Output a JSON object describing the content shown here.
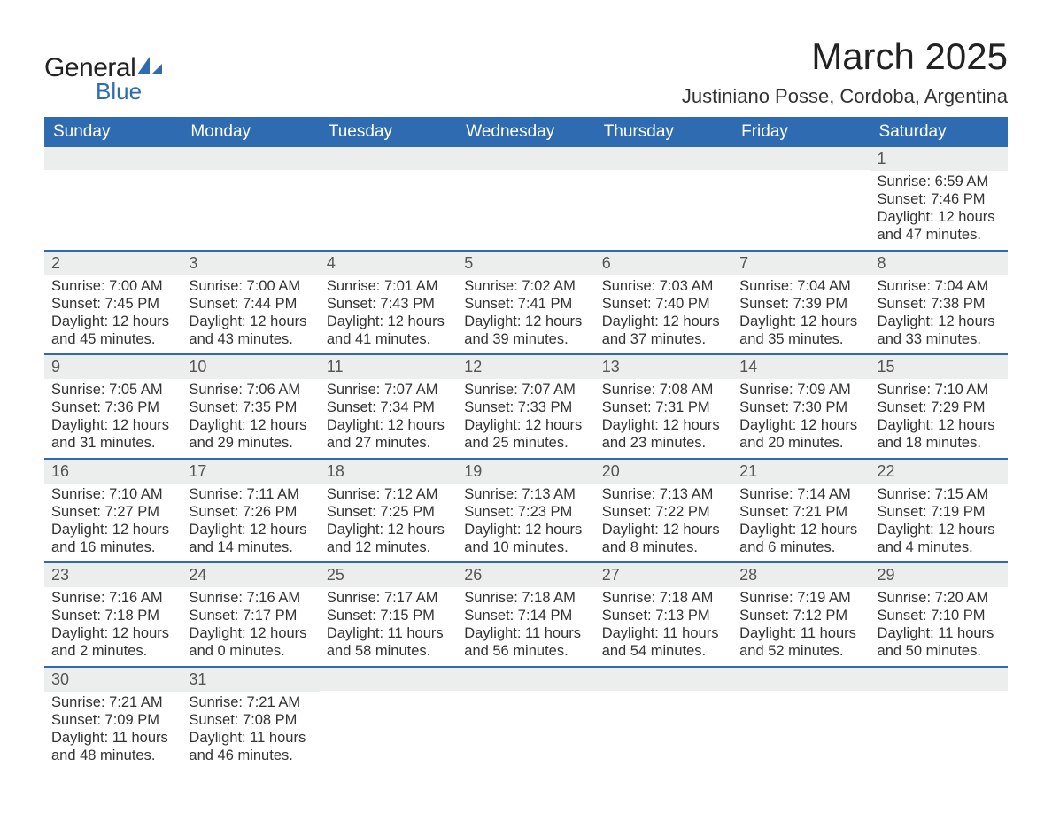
{
  "brand": {
    "word1": "General",
    "word2": "Blue",
    "accent": "#2f6bb0"
  },
  "title": "March 2025",
  "location": "Justiniano Posse, Cordoba, Argentina",
  "colors": {
    "header_bg": "#2f6bb0",
    "header_fg": "#ffffff",
    "daynum_bg": "#eceded",
    "text": "#333333",
    "row_border": "#2f6bb0",
    "page_bg": "#ffffff"
  },
  "typography": {
    "title_fontsize_pt": 32,
    "location_fontsize_pt": 17,
    "header_fontsize_pt": 14,
    "daynum_fontsize_pt": 14,
    "body_fontsize_pt": 12
  },
  "columns": [
    "Sunday",
    "Monday",
    "Tuesday",
    "Wednesday",
    "Thursday",
    "Friday",
    "Saturday"
  ],
  "weeks": [
    [
      null,
      null,
      null,
      null,
      null,
      null,
      {
        "n": "1",
        "sunrise": "6:59 AM",
        "sunset": "7:46 PM",
        "dl_h": "12",
        "dl_m": "47"
      }
    ],
    [
      {
        "n": "2",
        "sunrise": "7:00 AM",
        "sunset": "7:45 PM",
        "dl_h": "12",
        "dl_m": "45"
      },
      {
        "n": "3",
        "sunrise": "7:00 AM",
        "sunset": "7:44 PM",
        "dl_h": "12",
        "dl_m": "43"
      },
      {
        "n": "4",
        "sunrise": "7:01 AM",
        "sunset": "7:43 PM",
        "dl_h": "12",
        "dl_m": "41"
      },
      {
        "n": "5",
        "sunrise": "7:02 AM",
        "sunset": "7:41 PM",
        "dl_h": "12",
        "dl_m": "39"
      },
      {
        "n": "6",
        "sunrise": "7:03 AM",
        "sunset": "7:40 PM",
        "dl_h": "12",
        "dl_m": "37"
      },
      {
        "n": "7",
        "sunrise": "7:04 AM",
        "sunset": "7:39 PM",
        "dl_h": "12",
        "dl_m": "35"
      },
      {
        "n": "8",
        "sunrise": "7:04 AM",
        "sunset": "7:38 PM",
        "dl_h": "12",
        "dl_m": "33"
      }
    ],
    [
      {
        "n": "9",
        "sunrise": "7:05 AM",
        "sunset": "7:36 PM",
        "dl_h": "12",
        "dl_m": "31"
      },
      {
        "n": "10",
        "sunrise": "7:06 AM",
        "sunset": "7:35 PM",
        "dl_h": "12",
        "dl_m": "29"
      },
      {
        "n": "11",
        "sunrise": "7:07 AM",
        "sunset": "7:34 PM",
        "dl_h": "12",
        "dl_m": "27"
      },
      {
        "n": "12",
        "sunrise": "7:07 AM",
        "sunset": "7:33 PM",
        "dl_h": "12",
        "dl_m": "25"
      },
      {
        "n": "13",
        "sunrise": "7:08 AM",
        "sunset": "7:31 PM",
        "dl_h": "12",
        "dl_m": "23"
      },
      {
        "n": "14",
        "sunrise": "7:09 AM",
        "sunset": "7:30 PM",
        "dl_h": "12",
        "dl_m": "20"
      },
      {
        "n": "15",
        "sunrise": "7:10 AM",
        "sunset": "7:29 PM",
        "dl_h": "12",
        "dl_m": "18"
      }
    ],
    [
      {
        "n": "16",
        "sunrise": "7:10 AM",
        "sunset": "7:27 PM",
        "dl_h": "12",
        "dl_m": "16"
      },
      {
        "n": "17",
        "sunrise": "7:11 AM",
        "sunset": "7:26 PM",
        "dl_h": "12",
        "dl_m": "14"
      },
      {
        "n": "18",
        "sunrise": "7:12 AM",
        "sunset": "7:25 PM",
        "dl_h": "12",
        "dl_m": "12"
      },
      {
        "n": "19",
        "sunrise": "7:13 AM",
        "sunset": "7:23 PM",
        "dl_h": "12",
        "dl_m": "10"
      },
      {
        "n": "20",
        "sunrise": "7:13 AM",
        "sunset": "7:22 PM",
        "dl_h": "12",
        "dl_m": "8"
      },
      {
        "n": "21",
        "sunrise": "7:14 AM",
        "sunset": "7:21 PM",
        "dl_h": "12",
        "dl_m": "6"
      },
      {
        "n": "22",
        "sunrise": "7:15 AM",
        "sunset": "7:19 PM",
        "dl_h": "12",
        "dl_m": "4"
      }
    ],
    [
      {
        "n": "23",
        "sunrise": "7:16 AM",
        "sunset": "7:18 PM",
        "dl_h": "12",
        "dl_m": "2"
      },
      {
        "n": "24",
        "sunrise": "7:16 AM",
        "sunset": "7:17 PM",
        "dl_h": "12",
        "dl_m": "0"
      },
      {
        "n": "25",
        "sunrise": "7:17 AM",
        "sunset": "7:15 PM",
        "dl_h": "11",
        "dl_m": "58"
      },
      {
        "n": "26",
        "sunrise": "7:18 AM",
        "sunset": "7:14 PM",
        "dl_h": "11",
        "dl_m": "56"
      },
      {
        "n": "27",
        "sunrise": "7:18 AM",
        "sunset": "7:13 PM",
        "dl_h": "11",
        "dl_m": "54"
      },
      {
        "n": "28",
        "sunrise": "7:19 AM",
        "sunset": "7:12 PM",
        "dl_h": "11",
        "dl_m": "52"
      },
      {
        "n": "29",
        "sunrise": "7:20 AM",
        "sunset": "7:10 PM",
        "dl_h": "11",
        "dl_m": "50"
      }
    ],
    [
      {
        "n": "30",
        "sunrise": "7:21 AM",
        "sunset": "7:09 PM",
        "dl_h": "11",
        "dl_m": "48"
      },
      {
        "n": "31",
        "sunrise": "7:21 AM",
        "sunset": "7:08 PM",
        "dl_h": "11",
        "dl_m": "46"
      },
      null,
      null,
      null,
      null,
      null
    ]
  ],
  "labels": {
    "sunrise_prefix": "Sunrise: ",
    "sunset_prefix": "Sunset: ",
    "daylight_prefix": "Daylight: ",
    "hours_word": " hours",
    "and_word": "and ",
    "minutes_word": " minutes."
  }
}
